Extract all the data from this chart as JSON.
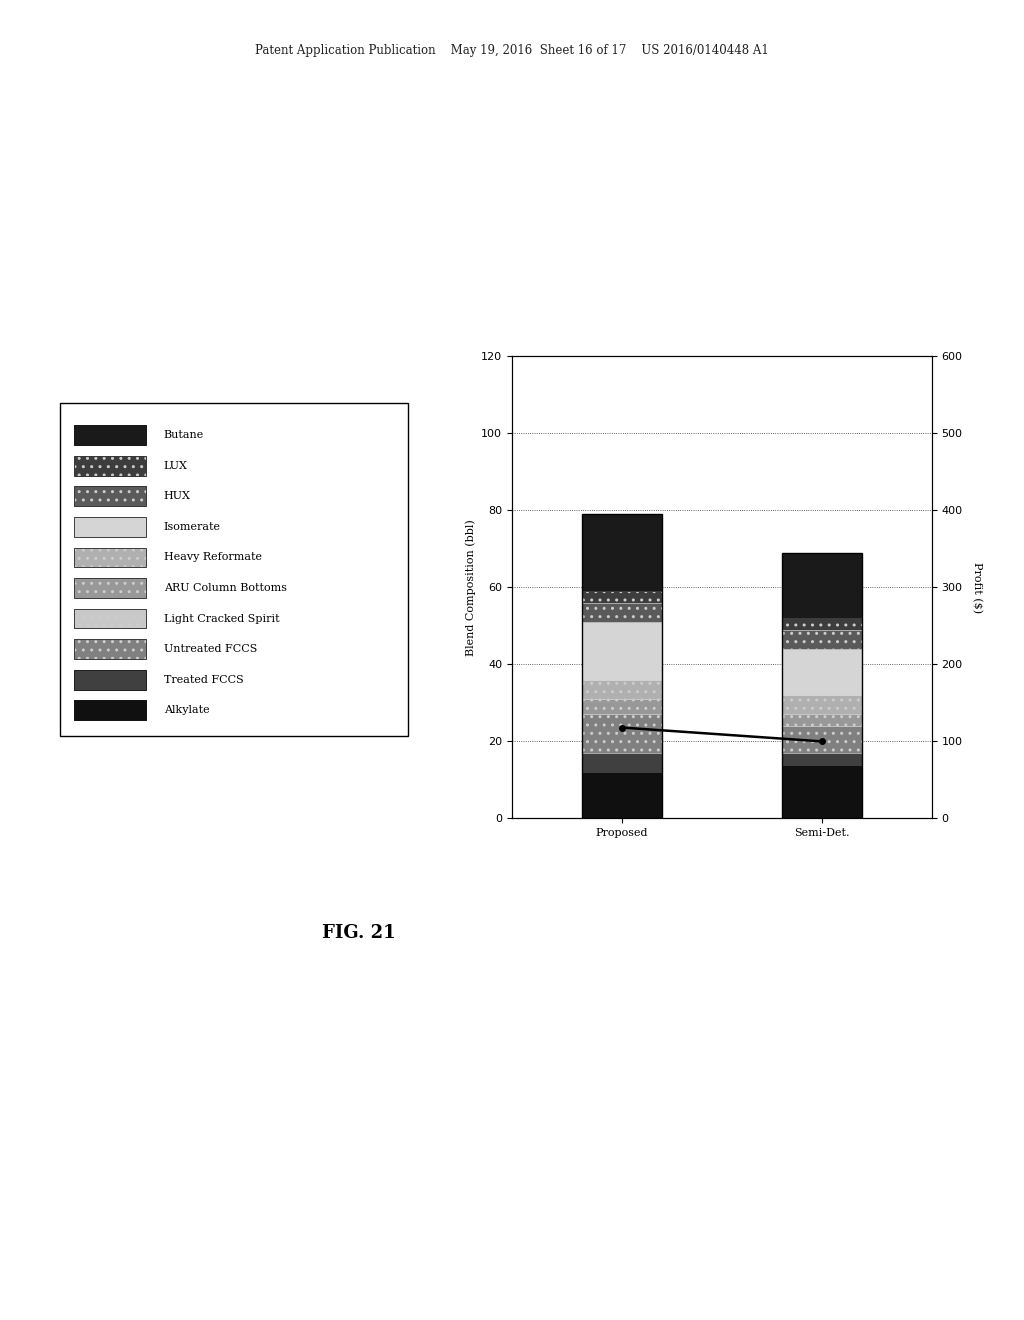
{
  "categories": [
    "Proposed",
    "Semi-Det."
  ],
  "ylabel_left": "Blend Composition (bbl)",
  "ylabel_right": "Profit ($)",
  "ylim_left": [
    0,
    120
  ],
  "ylim_right": [
    0,
    600
  ],
  "yticks_left": [
    0,
    20,
    40,
    60,
    80,
    100,
    120
  ],
  "yticks_right": [
    0,
    100,
    200,
    300,
    400,
    500,
    600
  ],
  "header_text": "Patent Application Publication    May 19, 2016  Sheet 16 of 17    US 2016/0140448 A1",
  "figure_label": "FIG. 21",
  "profit_line": [
    118,
    100
  ],
  "legend_order": [
    "Butane",
    "LUX",
    "HUX",
    "Isomerate",
    "Heavy Reformate",
    "ARU Column Bottoms",
    "Light Cracked Spirit",
    "Untreated FCCS",
    "Treated FCCS",
    "Alkylate"
  ],
  "stack_order": [
    "Alkylate",
    "Treated FCCS",
    "Untreated FCCS",
    "Light Cracked Spirit",
    "ARU Column Bottoms",
    "Heavy Reformate",
    "Isomerate",
    "HUX",
    "LUX",
    "Butane"
  ],
  "proposed_values": [
    12,
    5,
    10,
    0,
    4,
    5,
    15,
    5,
    3,
    20
  ],
  "semidet_values": [
    14,
    3,
    7,
    0,
    3,
    5,
    12,
    5,
    3,
    17
  ],
  "colors": {
    "Butane": "#1a1a1a",
    "LUX": "#3d3d3d",
    "HUX": "#5a5a5a",
    "Isomerate": "#d5d5d5",
    "Heavy Reformate": "#b0b0b0",
    "ARU Column Bottoms": "#989898",
    "Light Cracked Spirit": "#c8c8c8",
    "Untreated FCCS": "#808080",
    "Treated FCCS": "#404040",
    "Alkylate": "#101010"
  },
  "hatches": {
    "Butane": "",
    "LUX": "..",
    "HUX": "..",
    "Isomerate": "",
    "Heavy Reformate": "..",
    "ARU Column Bottoms": "..",
    "Light Cracked Spirit": "..",
    "Untreated FCCS": "..",
    "Treated FCCS": "",
    "Alkylate": ""
  }
}
